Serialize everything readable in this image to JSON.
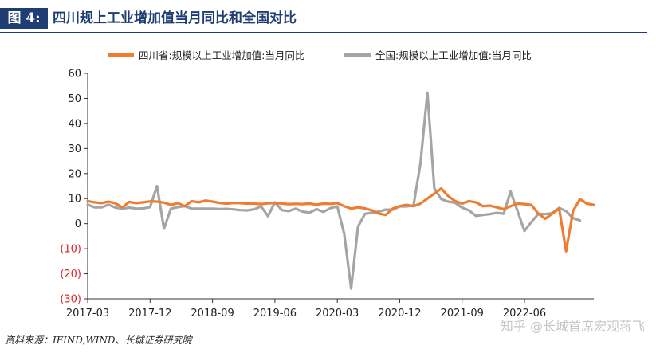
{
  "header": {
    "figure_label": "图 4:",
    "title": "四川规上工业增加值当月同比和全国对比"
  },
  "footer": {
    "source": "资料来源：IFIND,WIND、长城证券研究院",
    "watermark": "知乎 @长城首席宏观蒋飞"
  },
  "colors": {
    "brand": "#1f3d73",
    "sichuan": "#ed7d31",
    "national": "#a5a5a5",
    "negative_label": "#d8262e"
  },
  "chart_data": {
    "type": "line",
    "title": "",
    "xlabel": "",
    "ylabel": "",
    "ylim": [
      -30,
      60
    ],
    "yticks": [
      60,
      50,
      40,
      30,
      20,
      10,
      0,
      -10,
      -20,
      -30
    ],
    "ytick_labels": [
      "60",
      "50",
      "40",
      "30",
      "20",
      "10",
      "0",
      "(10)",
      "(20)",
      "(30)"
    ],
    "x_tick_labels": [
      "2017-03",
      "2017-12",
      "2018-09",
      "2019-06",
      "2020-03",
      "2020-12",
      "2021-09",
      "2022-06"
    ],
    "x_tick_index": [
      0,
      9,
      18,
      27,
      36,
      45,
      54,
      63
    ],
    "grid": false,
    "legend_position": "top",
    "series": [
      {
        "name": "四川省:规模以上工业增加值:当月同比",
        "color": "#ed7d31",
        "values": [
          9.0,
          8.5,
          8.2,
          8.8,
          8.1,
          6.5,
          8.7,
          8.2,
          8.5,
          8.9,
          8.8,
          8.4,
          7.5,
          8.2,
          7.0,
          9.0,
          8.5,
          9.2,
          8.8,
          8.3,
          8.0,
          8.3,
          8.2,
          8.0,
          8.0,
          7.8,
          8.1,
          8.3,
          8.0,
          7.8,
          7.9,
          7.8,
          8.0,
          7.6,
          8.0,
          7.9,
          8.2,
          7.0,
          6.0,
          6.5,
          6.1,
          5.3,
          4.0,
          3.5,
          6.0,
          7.0,
          7.5,
          7.0,
          8.0,
          10.0,
          12.0,
          14.0,
          11.0,
          9.0,
          8.0,
          9.0,
          8.5,
          7.0,
          7.2,
          6.5,
          5.8,
          7.0,
          8.0,
          7.8,
          7.5,
          4.0,
          2.0,
          4.0,
          6.0,
          -11.0,
          5.0,
          9.8,
          8.0,
          7.5
        ]
      },
      {
        "name": "全国:规模以上工业增加值:当月同比",
        "color": "#a5a5a5",
        "values": [
          7.6,
          6.5,
          6.5,
          7.6,
          6.4,
          6.0,
          6.4,
          6.0,
          6.1,
          6.6,
          15.0,
          -2.0,
          6.0,
          6.6,
          7.0,
          6.0,
          6.0,
          6.0,
          6.0,
          5.8,
          5.9,
          5.7,
          5.4,
          5.3,
          5.7,
          6.9,
          3.0,
          8.5,
          5.4,
          5.0,
          6.0,
          4.8,
          4.4,
          5.8,
          4.7,
          6.2,
          6.9,
          -4.0,
          -25.9,
          -1.1,
          3.9,
          4.4,
          4.8,
          5.6,
          5.6,
          6.9,
          6.9,
          7.3,
          24.0,
          52.3,
          14.1,
          9.8,
          8.8,
          8.3,
          6.4,
          5.3,
          3.1,
          3.5,
          3.8,
          4.3,
          4.0,
          12.8,
          5.0,
          -2.9,
          0.7,
          3.9,
          3.8,
          4.2,
          6.3,
          5.0,
          2.2,
          1.3
        ]
      }
    ]
  }
}
